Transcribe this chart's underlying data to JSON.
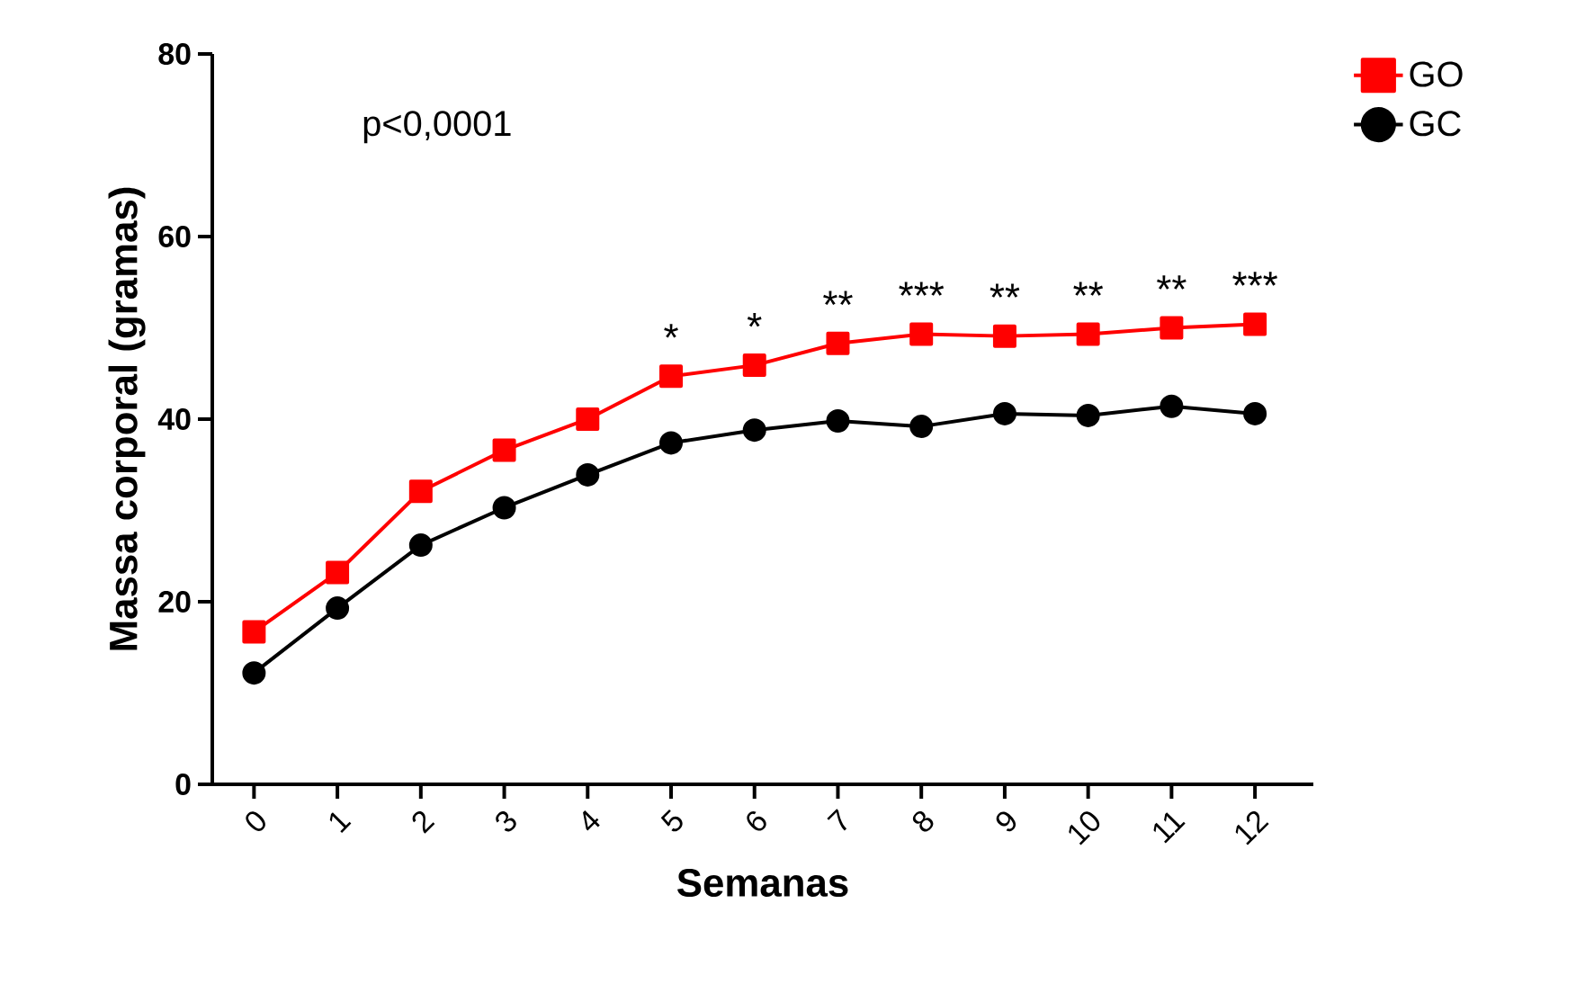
{
  "chart_data": {
    "type": "line",
    "xlabel": "Semanas",
    "ylabel": "Massa corporal (gramas)",
    "categories": [
      "0",
      "1",
      "2",
      "3",
      "4",
      "5",
      "6",
      "7",
      "8",
      "9",
      "10",
      "11",
      "12"
    ],
    "series": [
      {
        "name": "GO",
        "color": "#ff0000",
        "marker": "square",
        "values": [
          16.7,
          23.2,
          32.1,
          36.6,
          40.0,
          44.7,
          45.9,
          48.3,
          49.3,
          49.1,
          49.3,
          50.0,
          50.4
        ]
      },
      {
        "name": "GC",
        "color": "#000000",
        "marker": "circle",
        "values": [
          12.2,
          19.3,
          26.2,
          30.3,
          33.9,
          37.4,
          38.8,
          39.8,
          39.2,
          40.6,
          40.4,
          41.4,
          40.6
        ]
      }
    ],
    "ylim": [
      0,
      80
    ],
    "yticks": [
      0,
      20,
      40,
      60,
      80
    ],
    "grid": false,
    "legend": "top right",
    "line_style": "solid",
    "annotations": [
      "p<0,0001",
      {
        "text": "*",
        "x": "5",
        "y": 44.7
      },
      {
        "text": "*",
        "x": "6",
        "y": 45.9
      },
      {
        "text": "**",
        "x": "7",
        "y": 48.3
      },
      {
        "text": "***",
        "x": "8",
        "y": 49.3
      },
      {
        "text": "**",
        "x": "9",
        "y": 49.1
      },
      {
        "text": "**",
        "x": "10",
        "y": 49.3
      },
      {
        "text": "**",
        "x": "11",
        "y": 50.0
      },
      {
        "text": "***",
        "x": "12",
        "y": 50.4
      }
    ]
  }
}
